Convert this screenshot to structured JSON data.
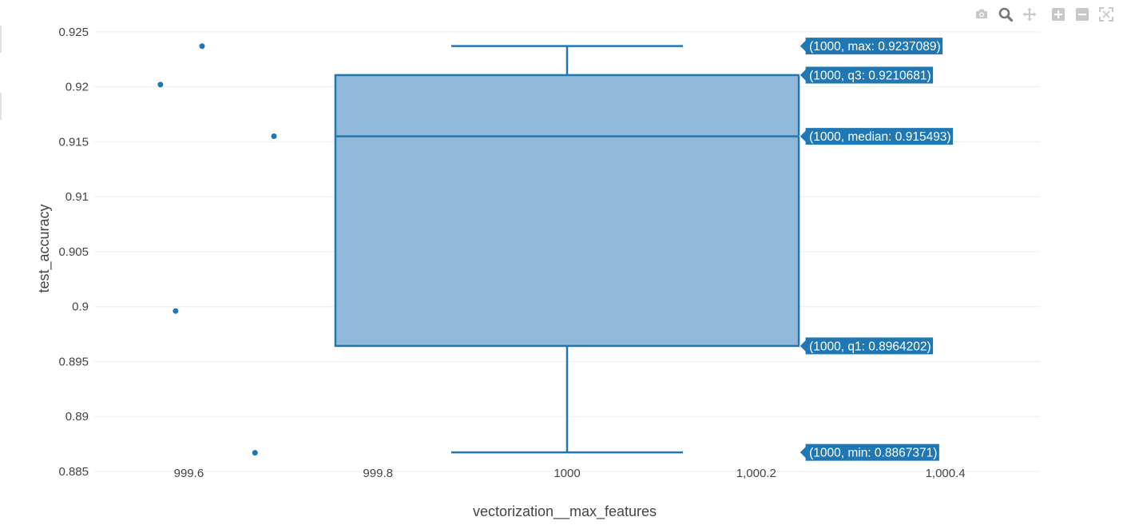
{
  "modebar": [
    {
      "name": "camera-icon",
      "icon": "camera"
    },
    {
      "name": "zoom-icon",
      "icon": "zoom",
      "active": true
    },
    {
      "name": "pan-icon",
      "icon": "pan"
    },
    {
      "name": "zoom-in-icon",
      "icon": "plus"
    },
    {
      "name": "zoom-out-icon",
      "icon": "minus"
    },
    {
      "name": "autoscale-icon",
      "icon": "autoscale"
    }
  ],
  "chart_data": {
    "type": "box",
    "title": "",
    "xlabel": "vectorization__max_features",
    "ylabel": "test_accuracy",
    "xlim": [
      999.5,
      1000.5
    ],
    "ylim": [
      0.885,
      0.9255
    ],
    "x_ticks": [
      {
        "value": 999.6,
        "label": "999.6"
      },
      {
        "value": 999.8,
        "label": "999.8"
      },
      {
        "value": 1000,
        "label": "1000"
      },
      {
        "value": 1000.2,
        "label": "1,000.2"
      },
      {
        "value": 1000.4,
        "label": "1,000.4"
      }
    ],
    "y_ticks": [
      {
        "value": 0.885,
        "label": "0.885"
      },
      {
        "value": 0.89,
        "label": "0.89"
      },
      {
        "value": 0.895,
        "label": "0.895"
      },
      {
        "value": 0.9,
        "label": "0.9"
      },
      {
        "value": 0.905,
        "label": "0.905"
      },
      {
        "value": 0.91,
        "label": "0.91"
      },
      {
        "value": 0.915,
        "label": "0.915"
      },
      {
        "value": 0.92,
        "label": "0.92"
      },
      {
        "value": 0.925,
        "label": "0.925"
      }
    ],
    "grid": true,
    "box": {
      "x": 1000,
      "min": 0.8867371,
      "q1": 0.8964202,
      "median": 0.915493,
      "q3": 0.9210681,
      "max": 0.9237089,
      "box_halfwidth": 0.245,
      "whisker_halfwidth": 0.1225
    },
    "points": [
      {
        "x": 999.57,
        "y": 0.9202
      },
      {
        "x": 999.614,
        "y": 0.9237
      },
      {
        "x": 999.586,
        "y": 0.8996
      },
      {
        "x": 999.69,
        "y": 0.9155
      },
      {
        "x": 999.67,
        "y": 0.8867
      }
    ],
    "hover_labels": [
      {
        "stat": "max",
        "text": "(1000, max: 0.9237089)"
      },
      {
        "stat": "q3",
        "text": "(1000, q3: 0.9210681)"
      },
      {
        "stat": "median",
        "text": "(1000, median: 0.915493)"
      },
      {
        "stat": "q1",
        "text": "(1000, q1: 0.8964202)"
      },
      {
        "stat": "min",
        "text": "(1000, min: 0.8867371)"
      }
    ],
    "colors": {
      "series": "#1f77b4",
      "box_fill": "#8fb8d9",
      "grid": "#eeeeee",
      "tick_text": "#444444",
      "modebar_icon": "#c8c8c8",
      "modebar_active": "#777777"
    }
  }
}
